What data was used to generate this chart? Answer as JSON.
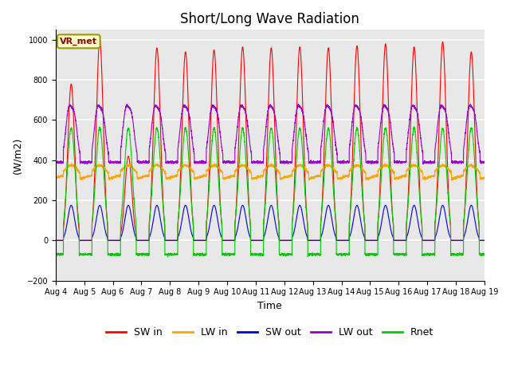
{
  "title": "Short/Long Wave Radiation",
  "xlabel": "Time",
  "ylabel": "(W/m2)",
  "ylim": [
    -200,
    1050
  ],
  "yticks": [
    -200,
    0,
    200,
    400,
    600,
    800,
    1000
  ],
  "n_days": 15,
  "annotation": "VR_met",
  "series": {
    "SW_in": {
      "color": "#ff0000",
      "label": "SW in"
    },
    "LW_in": {
      "color": "#ffa500",
      "label": "LW in"
    },
    "SW_out": {
      "color": "#0000dd",
      "label": "SW out"
    },
    "LW_out": {
      "color": "#9900cc",
      "label": "LW out"
    },
    "Rnet": {
      "color": "#00cc00",
      "label": "Rnet"
    }
  },
  "fig_bg_color": "#ffffff",
  "plot_bg_color": "#e8e8e8",
  "grid_color": "#ffffff",
  "title_fontsize": 12,
  "axis_fontsize": 9,
  "tick_fontsize": 7,
  "legend_fontsize": 9
}
